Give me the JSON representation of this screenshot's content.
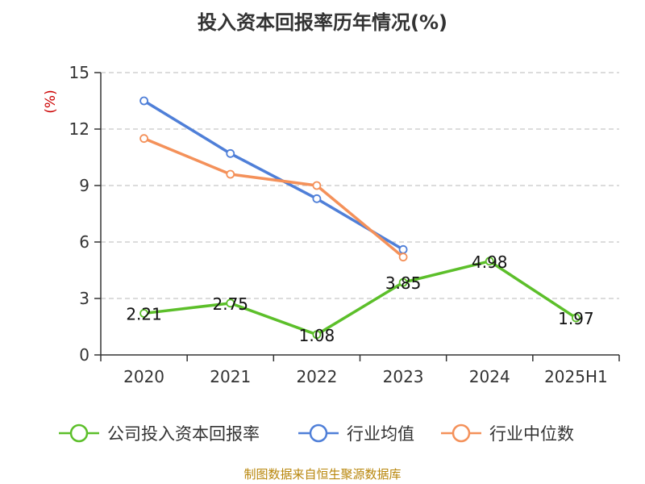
{
  "chart_data": {
    "type": "line",
    "title": "投入资本回报率历年情况(%)",
    "ylabel": "(%)",
    "xlabel": "",
    "ylim": [
      0,
      15
    ],
    "yticks": [
      0,
      3,
      6,
      9,
      12,
      15
    ],
    "grid": "horizontal dashed",
    "legend_position": "bottom",
    "categories": [
      "2020",
      "2021",
      "2022",
      "2023",
      "2024",
      "2025H1"
    ],
    "series": [
      {
        "name": "公司投入资本回报率",
        "color": "#5cbf2a",
        "values": [
          2.21,
          2.75,
          1.08,
          3.85,
          4.98,
          1.97
        ],
        "labels": [
          "2.21",
          "2.75",
          "1.08",
          "3.85",
          "4.98",
          "1.97"
        ]
      },
      {
        "name": "行业均值",
        "color": "#4f7fd8",
        "values": [
          13.5,
          10.7,
          8.3,
          5.6,
          null,
          null
        ]
      },
      {
        "name": "行业中位数",
        "color": "#f4915a",
        "values": [
          11.5,
          9.6,
          9.0,
          5.2,
          null,
          null
        ]
      }
    ]
  },
  "source": "制图数据来自恒生聚源数据库"
}
